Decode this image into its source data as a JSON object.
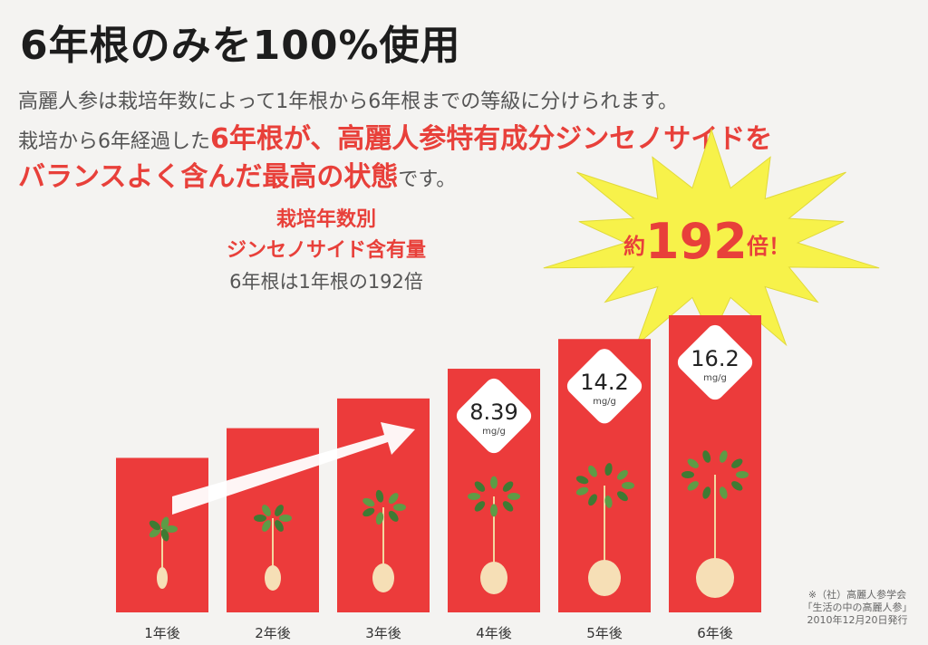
{
  "title": "6年根のみを100%使用",
  "line1": "高麗人参は栽培年数によって1年根から6年根までの等級に分けられます。",
  "line2_a": "栽培から6年経過した",
  "line2_b": "6年根が、高麗人参特有成分ジンセノサイドを",
  "line3_a": "バランスよく含んだ最高の状態",
  "line3_b": "です。",
  "caption": {
    "line1": "栽培年数別",
    "line2": "ジンセノサイド含有量",
    "line3": "6年根は1年根の192倍"
  },
  "burst": {
    "prefix": "約",
    "number": "192",
    "suffix": "倍！"
  },
  "note": {
    "line1": "※（社）高麗人参学会",
    "line2": "「生活の中の高麗人参」",
    "line3": "2010年12月20日発行"
  },
  "colors": {
    "bar": "#ec3b3b",
    "accent": "#e8403a",
    "burst": "#f7f24a"
  },
  "chart_data": {
    "type": "bar",
    "categories": [
      "1年後",
      "2年後",
      "3年後",
      "4年後",
      "5年後",
      "6年後"
    ],
    "values": [
      null,
      null,
      null,
      8.39,
      14.2,
      16.2
    ],
    "value_labels": [
      "",
      "",
      "",
      "8.39",
      "14.2",
      "16.2"
    ],
    "unit": "mg/g",
    "bar_level": [
      0.52,
      0.62,
      0.72,
      0.82,
      0.92,
      1.0
    ]
  }
}
